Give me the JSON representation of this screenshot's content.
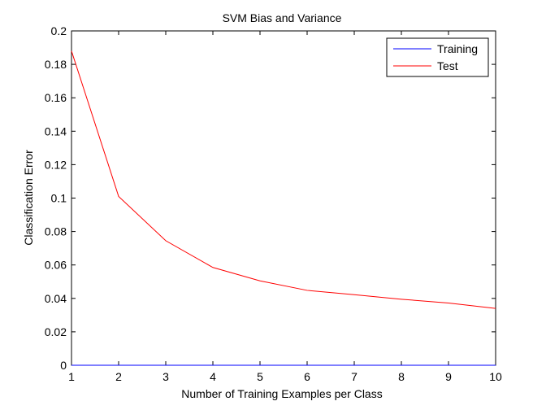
{
  "chart_data": {
    "type": "line",
    "title": "SVM Bias and Variance",
    "xlabel": "Number of Training Examples per Class",
    "ylabel": "Classification Error",
    "xlim": [
      1,
      10
    ],
    "ylim": [
      0,
      0.2
    ],
    "xticks": [
      1,
      2,
      3,
      4,
      5,
      6,
      7,
      8,
      9,
      10
    ],
    "yticks": [
      0,
      0.02,
      0.04,
      0.06,
      0.08,
      0.1,
      0.12,
      0.14,
      0.16,
      0.18,
      0.2
    ],
    "ytick_labels": [
      "0",
      "0.02",
      "0.04",
      "0.06",
      "0.08",
      "0.1",
      "0.12",
      "0.14",
      "0.16",
      "0.18",
      "0.2"
    ],
    "x": [
      1,
      2,
      3,
      4,
      5,
      6,
      7,
      8,
      9,
      10
    ],
    "grid": false,
    "legend_position": "top-right",
    "series": [
      {
        "name": "Training",
        "color": "#0000ff",
        "values": [
          0,
          0,
          0,
          0,
          0,
          0,
          0,
          0,
          0,
          0
        ]
      },
      {
        "name": "Test",
        "color": "#ff0000",
        "values": [
          0.188,
          0.101,
          0.0745,
          0.0585,
          0.0505,
          0.0448,
          0.0422,
          0.0395,
          0.0372,
          0.034
        ]
      }
    ]
  }
}
